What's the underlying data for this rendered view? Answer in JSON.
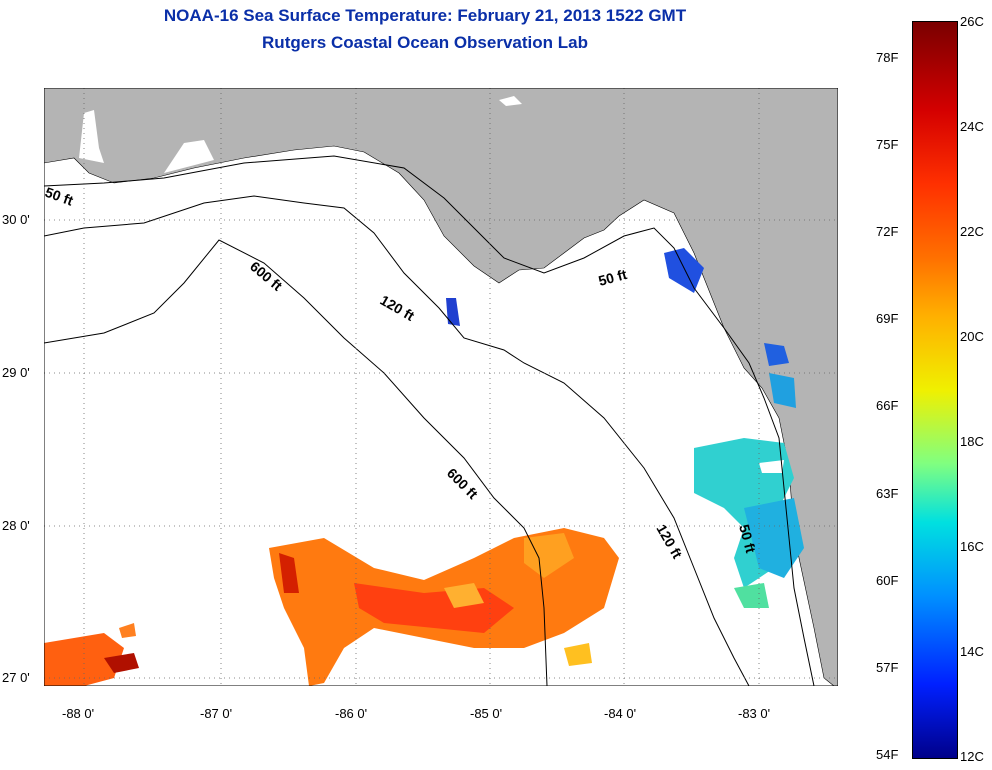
{
  "title": "NOAA-16 Sea Surface Temperature:  February 21, 2013 1522 GMT",
  "subtitle": "Rutgers Coastal Ocean Observation Lab",
  "lat_labels": [
    "30 0'",
    "29 0'",
    "28 0'",
    "27 0'"
  ],
  "lon_labels": [
    "-88 0'",
    "-87 0'",
    "-86 0'",
    "-85 0'",
    "-84 0'",
    "-83 0'"
  ],
  "contour_labels": [
    "50 ft",
    "600 ft",
    "120 ft",
    "50 ft",
    "600 ft",
    "120 ft",
    "50 ft"
  ],
  "colorbar": {
    "fahrenheit": [
      "78F",
      "75F",
      "72F",
      "69F",
      "66F",
      "63F",
      "60F",
      "57F",
      "54F"
    ],
    "celsius": [
      "26C",
      "24C",
      "22C",
      "20C",
      "18C",
      "16C",
      "14C",
      "12C"
    ],
    "min_c": 12,
    "max_c": 26
  },
  "colors": {
    "title": "#0a2fa8",
    "land": "#b4b4b4",
    "ocean": "#ffffff"
  }
}
